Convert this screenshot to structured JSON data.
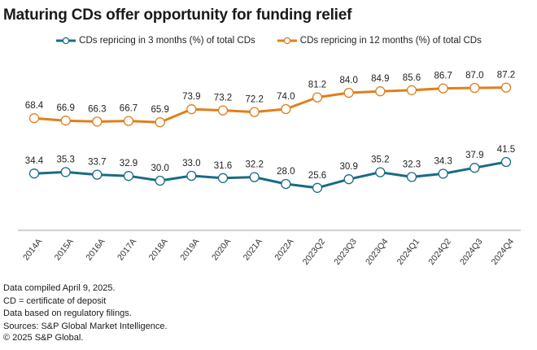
{
  "colors": {
    "series_3m": "#1b6b87",
    "series_12m": "#e07f1c",
    "axis": "#d0d0d0"
  },
  "chart_data": {
    "type": "line",
    "title": "Maturing CDs offer opportunity for funding relief",
    "xlabel": "",
    "ylabel": "",
    "ylim": [
      0,
      100
    ],
    "grid": false,
    "legend": "top-center",
    "x": [
      "2014A",
      "2015A",
      "2016A",
      "2017A",
      "2018A",
      "2019A",
      "2020A",
      "2021A",
      "2022A",
      "2023Q2",
      "2023Q3",
      "2023Q4",
      "2024Q1",
      "2024Q2",
      "2024Q3",
      "2024Q4"
    ],
    "series": [
      {
        "name": "CDs repricing in 3 months (%) of total CDs",
        "color_key": "series_3m",
        "values": [
          34.4,
          35.3,
          33.7,
          32.9,
          30.0,
          33.0,
          31.6,
          32.2,
          28.0,
          25.6,
          30.9,
          35.2,
          32.3,
          34.3,
          37.9,
          41.5
        ]
      },
      {
        "name": "CDs repricing in 12 months (%) of total CDs",
        "color_key": "series_12m",
        "values": [
          68.4,
          66.9,
          66.3,
          66.7,
          65.9,
          73.9,
          73.2,
          72.2,
          74.0,
          81.2,
          84.0,
          84.9,
          85.6,
          86.7,
          87.0,
          87.2
        ]
      }
    ]
  },
  "legend": {
    "items": [
      {
        "label": "CDs repricing in 3 months (%) of total CDs"
      },
      {
        "label": "CDs repricing in 12 months (%) of total CDs"
      }
    ]
  },
  "notes": [
    "Data compiled April 9, 2025.",
    "CD = certificate of deposit",
    "Data based on regulatory filings.",
    "Sources: S&P Global Market Intelligence.",
    "© 2025 S&P Global."
  ]
}
